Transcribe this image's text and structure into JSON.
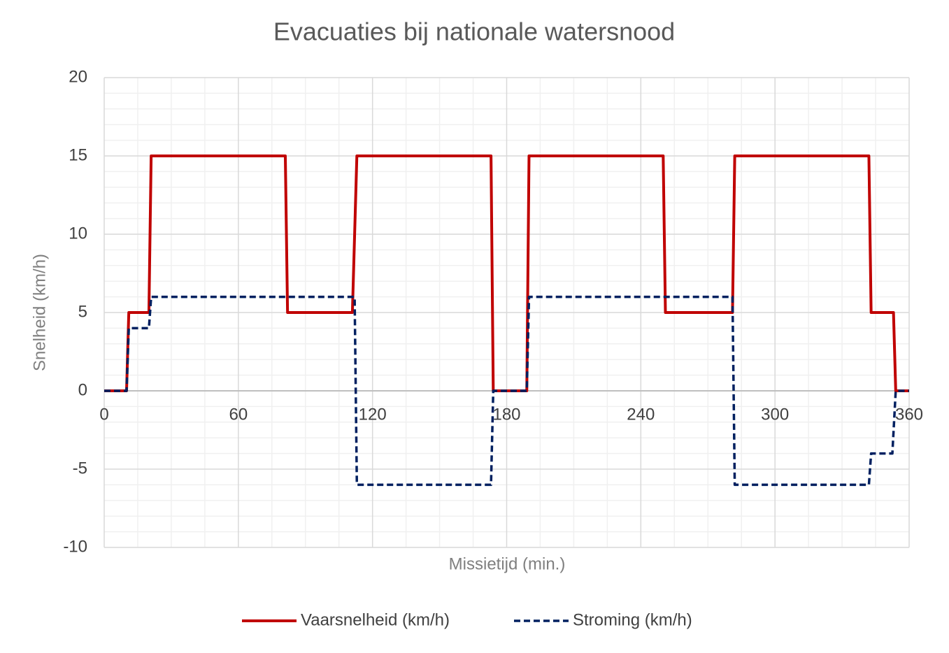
{
  "chart_data": {
    "type": "line",
    "title": "Evacuaties bij nationale watersnood",
    "x_label": "Missietijd (min.)",
    "y_label": "Snelheid (km/h)",
    "xlim": [
      0,
      360
    ],
    "xticks": [
      0,
      60,
      120,
      180,
      240,
      300,
      360
    ],
    "ylim": [
      -10,
      20
    ],
    "yticks": [
      -10,
      -5,
      0,
      5,
      10,
      15,
      20
    ],
    "grid": true,
    "series": [
      {
        "name": "Vaarsnelheid (km/h)",
        "color": "#c00000",
        "dash": false,
        "x": [
          0,
          10,
          11,
          20,
          21,
          81,
          82,
          111,
          113,
          173,
          174,
          189,
          190,
          250,
          251,
          281,
          282,
          342,
          343,
          353,
          354,
          360
        ],
        "values": [
          0,
          0,
          5,
          5,
          15,
          15,
          5,
          5,
          15,
          15,
          0,
          0,
          15,
          15,
          5,
          5,
          15,
          15,
          5,
          5,
          0,
          0
        ]
      },
      {
        "name": "Stroming (km/h)",
        "color": "#002060",
        "dash": true,
        "x": [
          0,
          10,
          11,
          20,
          21,
          112,
          113,
          173,
          174,
          189,
          190,
          281,
          282,
          342,
          343,
          352.5,
          354,
          360
        ],
        "values": [
          0,
          0,
          4,
          4,
          6,
          6,
          -6,
          -6,
          0,
          0,
          6,
          6,
          -6,
          -6,
          -4,
          -4,
          0,
          0
        ]
      }
    ]
  }
}
